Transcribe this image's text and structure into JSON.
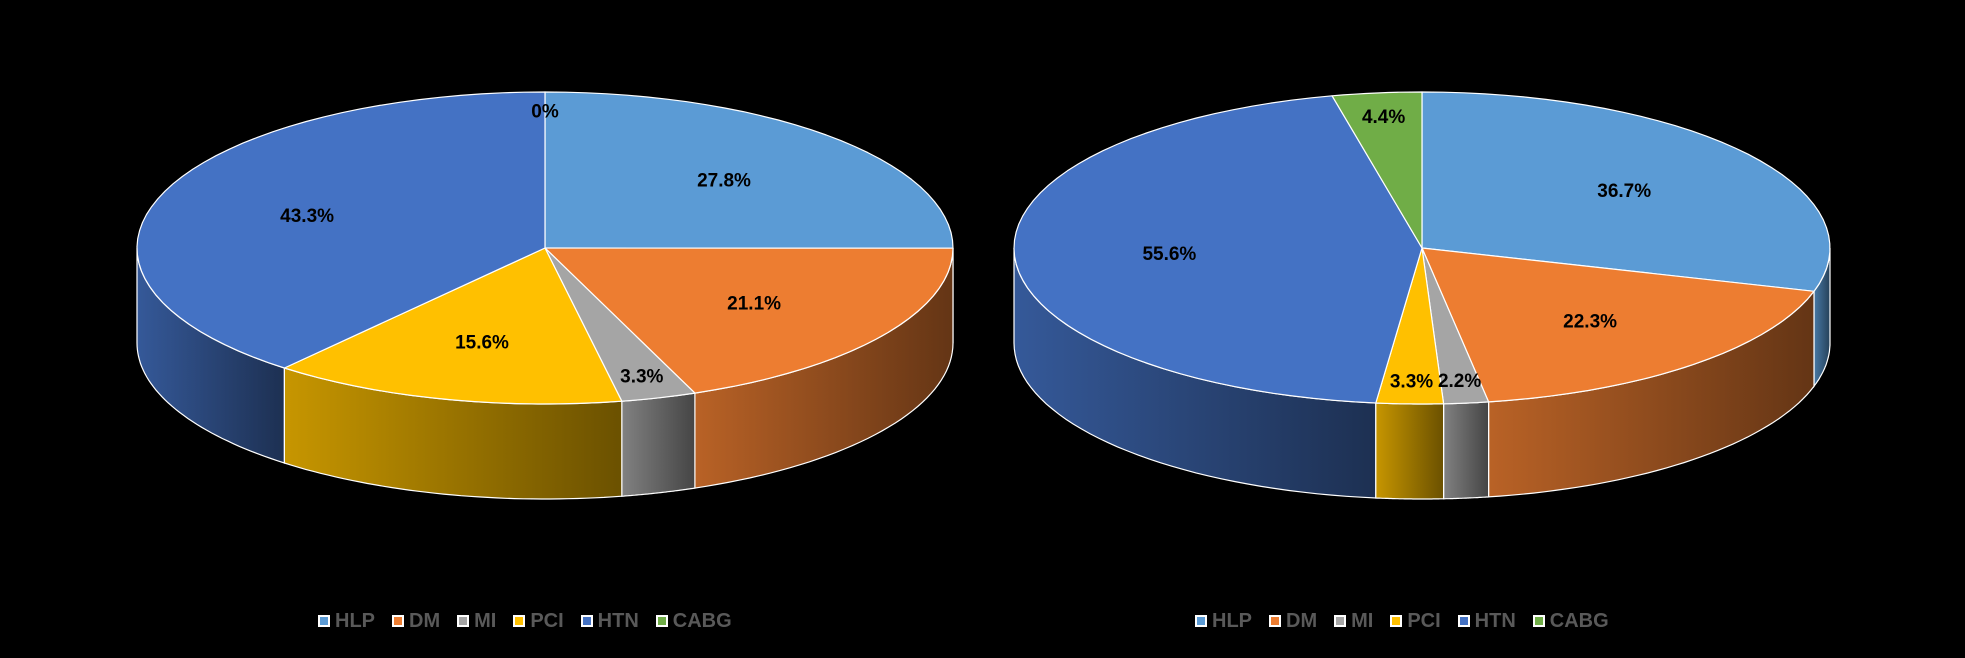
{
  "chart_data": [
    {
      "type": "pie",
      "title": "",
      "categories": [
        "HLP",
        "DM",
        "MI",
        "PCI",
        "HTN",
        "CABG"
      ],
      "values": [
        27.8,
        21.1,
        3.3,
        15.6,
        43.3,
        0
      ],
      "value_labels": [
        "27.8%",
        "21.1%",
        "3.3%",
        "15.6%",
        "43.3%",
        "0%"
      ],
      "colors": [
        "#5b9bd5",
        "#ed7d31",
        "#a5a5a5",
        "#ffc000",
        "#4472c4",
        "#70ad47"
      ],
      "legend_position": "bottom",
      "style": "3d"
    },
    {
      "type": "pie",
      "title": "",
      "categories": [
        "HLP",
        "DM",
        "MI",
        "PCI",
        "HTN",
        "CABG"
      ],
      "values": [
        36.7,
        22.3,
        2.2,
        3.3,
        55.6,
        4.4
      ],
      "value_labels": [
        "36.7%",
        "22.3%",
        "2.2%",
        "3.3%",
        "55.6%",
        "4.4%"
      ],
      "colors": [
        "#5b9bd5",
        "#ed7d31",
        "#a5a5a5",
        "#ffc000",
        "#4472c4",
        "#70ad47"
      ],
      "legend_position": "bottom",
      "style": "3d"
    }
  ]
}
